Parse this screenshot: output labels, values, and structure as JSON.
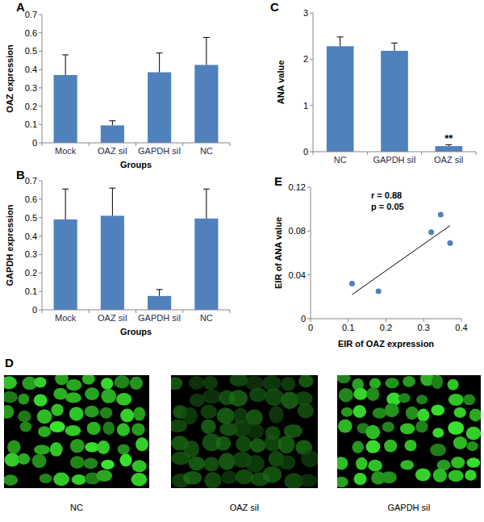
{
  "chart_data": [
    {
      "type": "bar",
      "panel": "A",
      "x_label": "Groups",
      "y_label": "OAZ expression",
      "categories": [
        "Mock",
        "OAZ siI",
        "GAPDH siI",
        "NC"
      ],
      "values": [
        0.37,
        0.095,
        0.385,
        0.425
      ],
      "errors": [
        0.11,
        0.025,
        0.105,
        0.15
      ],
      "color": "#4f81bd",
      "ylim": [
        0,
        0.7
      ],
      "yticks": [
        0,
        0.1,
        0.2,
        0.3,
        0.4,
        0.5,
        0.6,
        0.7
      ],
      "grid": false
    },
    {
      "type": "bar",
      "panel": "B",
      "x_label": "Groups",
      "y_label": "GAPDH expression",
      "categories": [
        "Mock",
        "OAZ siI",
        "GAPDH siI",
        "NC"
      ],
      "values": [
        0.49,
        0.51,
        0.075,
        0.495
      ],
      "errors": [
        0.165,
        0.15,
        0.035,
        0.16
      ],
      "color": "#4f81bd",
      "ylim": [
        0,
        0.7
      ],
      "yticks": [
        0,
        0.1,
        0.2,
        0.3,
        0.4,
        0.5,
        0.6,
        0.7
      ],
      "grid": false
    },
    {
      "type": "bar",
      "panel": "C",
      "y_label": "ANA value",
      "categories": [
        "NC",
        "GAPDH siI",
        "OAZ siI"
      ],
      "values": [
        2.28,
        2.18,
        0.12
      ],
      "errors": [
        0.2,
        0.17,
        0.03
      ],
      "annotations": [
        null,
        null,
        "**"
      ],
      "color": "#4f81bd",
      "ylim": [
        0,
        3
      ],
      "yticks": [
        0,
        1,
        2,
        3
      ],
      "grid": false
    },
    {
      "type": "scatter",
      "panel": "E",
      "x_label": "EIR of OAZ expression",
      "y_label": "EIR of ANA value",
      "x": [
        0.11,
        0.18,
        0.32,
        0.345,
        0.37
      ],
      "values": [
        0.032,
        0.025,
        0.079,
        0.095,
        0.069
      ],
      "trend_line": {
        "x": [
          0.11,
          0.37
        ],
        "y": [
          0.022,
          0.085
        ]
      },
      "annotations": [
        "r = 0.88",
        "p = 0.05"
      ],
      "color": "#4f81bd",
      "marker": "circle",
      "xlim": [
        0,
        0.4
      ],
      "xticks": [
        0,
        0.1,
        0.2,
        0.3,
        0.4
      ],
      "ylim": [
        0,
        0.12
      ],
      "yticks": [
        0,
        0.04,
        0.08,
        0.12
      ],
      "grid": false
    }
  ],
  "image_panel": {
    "panel": "D",
    "captions": [
      "NC",
      "OAZ siI",
      "GAPDH siI"
    ]
  }
}
